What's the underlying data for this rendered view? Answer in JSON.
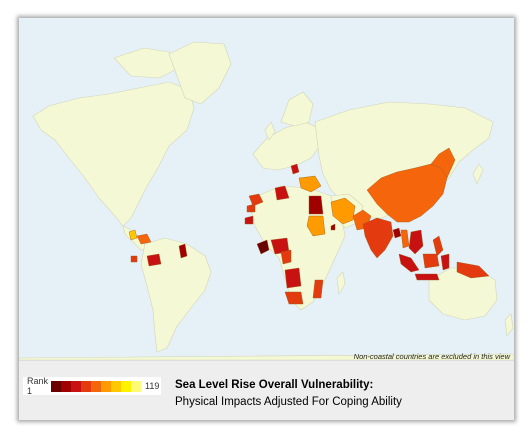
{
  "map": {
    "ocean_color": "#e6f0f7",
    "land_color": "#f5f8d4",
    "border_color": "#d8dcc0",
    "note": "Non-coastal countries are excluded in this view"
  },
  "legend": {
    "min_label": "Rank 1",
    "max_label": "119",
    "colors": [
      "#6b0000",
      "#a10000",
      "#c81212",
      "#e33b0f",
      "#f5660c",
      "#ff9a00",
      "#ffc800",
      "#fff200",
      "#fffb77"
    ]
  },
  "title": "Sea Level Rise Overall Vulnerability:",
  "subtitle": "Physical Impacts Adjusted For Coping Ability"
}
